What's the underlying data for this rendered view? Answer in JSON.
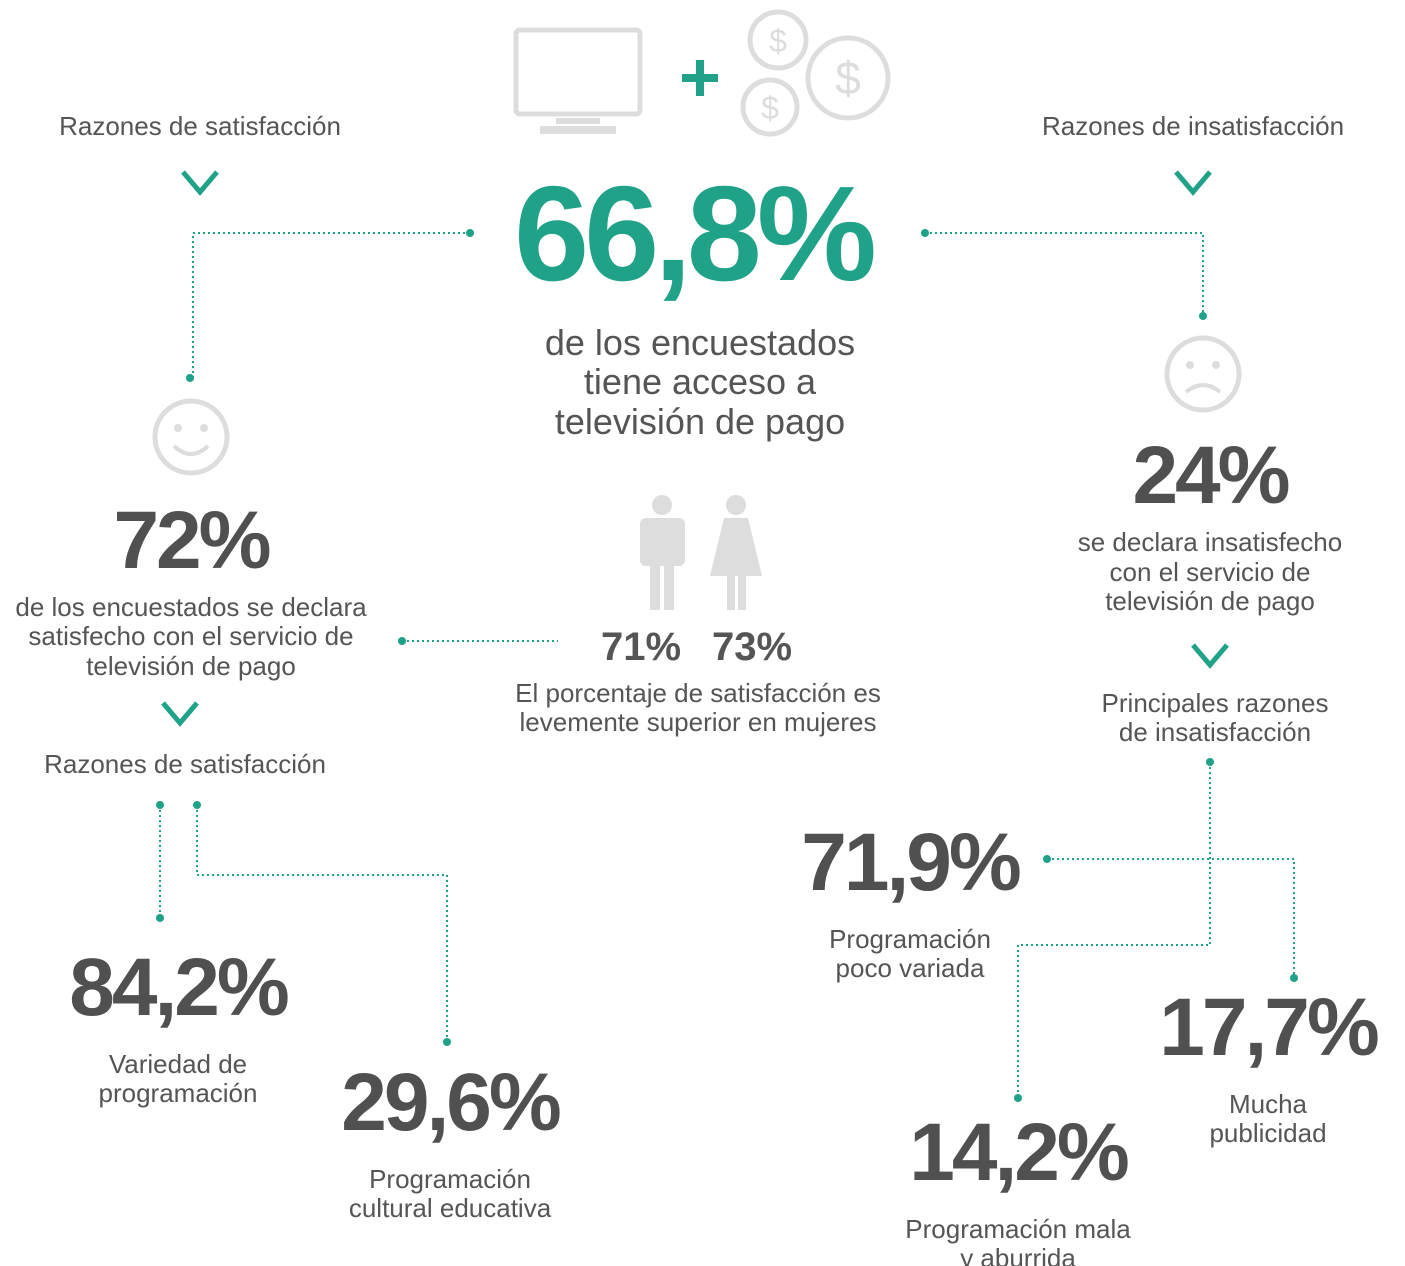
{
  "headline": {
    "value": "66,8%",
    "lines": [
      "de los encuestados",
      "tiene acceso a",
      "televisión de pago"
    ]
  },
  "left_header": "Razones de satisfacción",
  "right_header": "Razones de insatisfacción",
  "satisfied": {
    "value": "72%",
    "lines": [
      "de los encuestados se declara",
      "satisfecho con el servicio de",
      "televisión de pago"
    ],
    "reasons_title": "Razones de satisfacción"
  },
  "gender": {
    "men": "71%",
    "women": "73%",
    "lines": [
      "El porcentaje de satisfacción es",
      "levemente superior en mujeres"
    ]
  },
  "dissatisfied": {
    "value": "24%",
    "lines": [
      "se declara insatisfecho",
      "con el servicio de",
      "televisión de pago"
    ],
    "reasons_title": [
      "Principales razones",
      "de insatisfacción"
    ]
  },
  "satisfaction_reasons": [
    {
      "value": "84,2%",
      "lines": [
        "Variedad de",
        "programación"
      ]
    },
    {
      "value": "29,6%",
      "lines": [
        "Programación",
        "cultural educativa"
      ]
    }
  ],
  "dissatisfaction_reasons": [
    {
      "value": "71,9%",
      "lines": [
        "Programación",
        "poco variada"
      ]
    },
    {
      "value": "17,7%",
      "lines": [
        "Mucha",
        "publicidad"
      ]
    },
    {
      "value": "14,2%",
      "lines": [
        "Programación mala",
        "y aburrida"
      ]
    }
  ]
}
